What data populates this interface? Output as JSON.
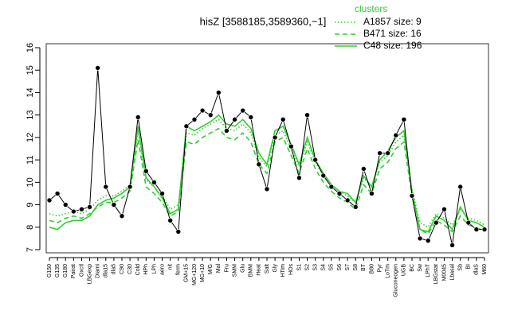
{
  "chart_data": {
    "type": "line",
    "title": "hisZ [3588185,3589360,−1]",
    "legend_title": "clusters",
    "legend_position": "upper right",
    "categories": [
      "G150",
      "G135",
      "G180",
      "Pairat",
      "Oxctl",
      "LBGexp",
      "Diami",
      "dla15",
      "dla5",
      "C90",
      "C30",
      "Cold",
      "HPh",
      "LPh",
      "aero",
      "nit",
      "ferm",
      "GM+15",
      "MG+120",
      "MG+10",
      "M/G",
      "Mal",
      "Fru",
      "SMM",
      "Glu",
      "BMM",
      "Heat",
      "Salt",
      "Gly",
      "HTim",
      "HOs",
      "S1",
      "S2",
      "S3",
      "S4",
      "S5",
      "S6",
      "S7",
      "S8",
      "BT",
      "B80",
      "Pyr",
      "LoTm",
      "Gluconeogen",
      "UGB",
      "BC",
      "Sw",
      "LPhT",
      "LBGstat",
      "M0045",
      "Lbasal",
      "Sb",
      "BI",
      "dlaS",
      "M60"
    ],
    "values": [
      9.2,
      9.5,
      9.0,
      8.7,
      8.8,
      8.9,
      15.1,
      9.8,
      9.0,
      8.5,
      9.8,
      12.9,
      10.5,
      10.0,
      9.5,
      8.3,
      7.8,
      12.5,
      12.8,
      13.2,
      13.0,
      14.0,
      12.3,
      12.8,
      13.2,
      12.9,
      10.8,
      9.7,
      12.0,
      12.8,
      11.6,
      10.2,
      13.0,
      11.0,
      10.3,
      9.8,
      9.5,
      9.2,
      8.9,
      10.6,
      9.5,
      11.3,
      11.3,
      12.1,
      12.8,
      9.4,
      7.5,
      7.4,
      8.2,
      8.8,
      7.2,
      9.8,
      8.2,
      7.9,
      7.9
    ],
    "color": "#000000",
    "series": [
      {
        "name": "A1857 size: 9",
        "color": "#33cc33",
        "dash": "dotted",
        "values": [
          8.6,
          8.5,
          8.6,
          8.7,
          8.6,
          8.8,
          9.2,
          9.4,
          9.4,
          9.6,
          9.9,
          12.3,
          10.1,
          9.8,
          9.4,
          8.8,
          9.0,
          12.2,
          12.1,
          12.4,
          12.6,
          12.8,
          12.4,
          12.3,
          12.6,
          12.2,
          11.1,
          10.7,
          12.1,
          12.3,
          11.5,
          10.7,
          11.8,
          10.9,
          10.3,
          9.9,
          9.6,
          9.4,
          9.1,
          10.2,
          9.8,
          10.9,
          11.2,
          11.8,
          12.1,
          9.7,
          8.2,
          8.0,
          8.6,
          8.4,
          8.1,
          8.8,
          8.4,
          8.3,
          8.1
        ]
      },
      {
        "name": "B471 size: 16",
        "color": "#33cc33",
        "dash": "dashed",
        "values": [
          8.3,
          8.2,
          8.4,
          8.5,
          8.4,
          8.6,
          8.9,
          9.1,
          9.1,
          9.3,
          9.6,
          11.9,
          9.8,
          9.5,
          9.1,
          8.5,
          8.7,
          11.8,
          11.7,
          12.0,
          12.2,
          12.4,
          12.0,
          11.9,
          12.2,
          11.8,
          10.8,
          10.4,
          11.8,
          12.0,
          11.2,
          10.4,
          11.5,
          10.6,
          10.0,
          9.6,
          9.3,
          9.1,
          8.8,
          9.9,
          9.5,
          10.6,
          10.9,
          11.5,
          11.8,
          9.4,
          7.9,
          7.7,
          8.3,
          8.1,
          7.8,
          8.5,
          8.1,
          8.0,
          7.8
        ]
      },
      {
        "name": "C48 size: 196",
        "color": "#33cc33",
        "dash": "solid",
        "values": [
          8.0,
          7.9,
          8.2,
          8.3,
          8.3,
          8.5,
          9.0,
          9.2,
          9.3,
          9.5,
          9.8,
          12.5,
          10.2,
          9.8,
          9.3,
          8.6,
          8.8,
          12.5,
          12.3,
          12.5,
          12.7,
          13.0,
          12.6,
          12.5,
          12.8,
          12.4,
          11.3,
          10.8,
          12.3,
          12.5,
          11.7,
          10.8,
          12.0,
          11.0,
          10.4,
          9.9,
          9.6,
          9.5,
          9.1,
          10.3,
          9.8,
          11.0,
          11.4,
          12.0,
          12.3,
          9.6,
          7.9,
          7.8,
          8.5,
          8.3,
          7.9,
          8.9,
          8.3,
          8.2,
          8.0
        ]
      }
    ],
    "ylim": [
      7,
      16
    ],
    "yticks": [
      7,
      8,
      9,
      10,
      11,
      12,
      13,
      14,
      15,
      16
    ]
  }
}
